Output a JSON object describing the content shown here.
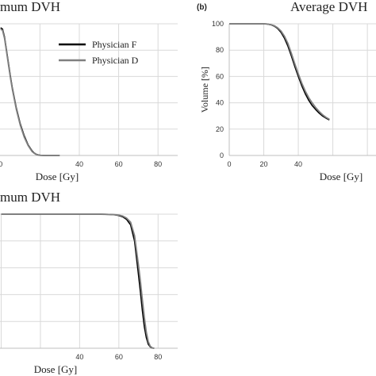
{
  "chart_data": [
    {
      "panel": "",
      "type": "line",
      "title": "mum DVH",
      "xlabel": "Dose [Gy]",
      "ylabel": "",
      "xlim": [
        -0.3,
        90
      ],
      "ylim": [
        0,
        100
      ],
      "xticks": [
        "0",
        "40",
        "60",
        "80"
      ],
      "grid": true,
      "legend": {
        "position": "top-right",
        "entries": [
          "Physician F",
          "Physician D"
        ]
      },
      "series": [
        {
          "name": "Physician F",
          "color": "#000000",
          "x": [
            0,
            1,
            2,
            3,
            4,
            5,
            6,
            8,
            10,
            12,
            14,
            16,
            17,
            18,
            19,
            20,
            22,
            24,
            26,
            28,
            30
          ],
          "y": [
            97,
            96,
            90,
            80,
            70,
            60,
            51,
            36,
            24,
            15,
            8,
            3.5,
            2,
            1,
            0.5,
            0.2,
            0,
            0,
            0,
            0,
            0
          ]
        },
        {
          "name": "Physician D",
          "color": "#808080",
          "x": [
            0,
            1,
            2,
            3,
            4,
            5,
            6,
            8,
            10,
            12,
            14,
            16,
            17,
            18,
            19,
            20,
            22,
            24,
            26,
            28,
            30
          ],
          "y": [
            96,
            95,
            89,
            79,
            69,
            59,
            50,
            35,
            23,
            14,
            7.5,
            3,
            1.8,
            0.8,
            0.4,
            0.1,
            0,
            0,
            0,
            0,
            0
          ]
        }
      ]
    },
    {
      "panel": "(b)",
      "type": "line",
      "title": "Average DVH",
      "xlabel": "Dose [Gy]",
      "ylabel": "Volume [%]",
      "xlim": [
        0,
        85
      ],
      "ylim": [
        0,
        100
      ],
      "xticks": [
        "0",
        "20",
        "40"
      ],
      "yticks": [
        "0",
        "20",
        "40",
        "60",
        "80",
        "100"
      ],
      "grid": true,
      "series": [
        {
          "name": "Physician F",
          "color": "#000000",
          "x": [
            0,
            10,
            20,
            22,
            24,
            26,
            28,
            30,
            32,
            34,
            36,
            38,
            40,
            42,
            44,
            46,
            48,
            50,
            52,
            54,
            56,
            58
          ],
          "y": [
            100,
            100,
            100,
            99.8,
            99.3,
            98.3,
            96.5,
            93.5,
            89,
            83,
            75.5,
            67.5,
            60,
            53,
            47,
            42,
            38,
            35,
            32.3,
            30,
            28.4,
            27
          ]
        },
        {
          "name": "Physician D",
          "color": "#808080",
          "x": [
            0,
            10,
            20,
            22,
            24,
            26,
            28,
            30,
            32,
            34,
            36,
            38,
            40,
            42,
            44,
            46,
            48,
            50,
            52,
            54,
            56,
            58
          ],
          "y": [
            100,
            100,
            100,
            99.8,
            99.4,
            98.6,
            97,
            94.5,
            90.5,
            85,
            77.5,
            69.5,
            62,
            55,
            49,
            44,
            40,
            36.5,
            33.5,
            31,
            29,
            27.5
          ]
        }
      ]
    },
    {
      "panel": "",
      "type": "line",
      "title": "mum DVH",
      "xlabel": "Dose [Gy]",
      "ylabel": "",
      "xlim": [
        -0.6,
        90
      ],
      "ylim": [
        0,
        100
      ],
      "xticks": [
        "40",
        "60",
        "80"
      ],
      "grid": true,
      "series": [
        {
          "name": "Physician F",
          "color": "#000000",
          "x": [
            0,
            20,
            40,
            50,
            55,
            58,
            60,
            62,
            64,
            66,
            68,
            70,
            71,
            72,
            73,
            74,
            75,
            76,
            77,
            78
          ],
          "y": [
            100,
            100,
            100,
            100,
            99.8,
            99.5,
            99,
            98,
            96,
            92,
            80,
            55,
            42,
            28,
            16,
            8,
            3,
            1,
            0.2,
            0
          ]
        },
        {
          "name": "Physician D",
          "color": "#808080",
          "x": [
            0,
            20,
            40,
            50,
            55,
            58,
            60,
            62,
            64,
            66,
            68,
            70,
            71,
            72,
            73,
            74,
            75,
            76,
            77,
            78
          ],
          "y": [
            100,
            100,
            100,
            100,
            99.8,
            99.6,
            99.3,
            98.6,
            97,
            94,
            84,
            62,
            50,
            36,
            23,
            12,
            5,
            1.5,
            0.3,
            0
          ]
        }
      ]
    }
  ]
}
